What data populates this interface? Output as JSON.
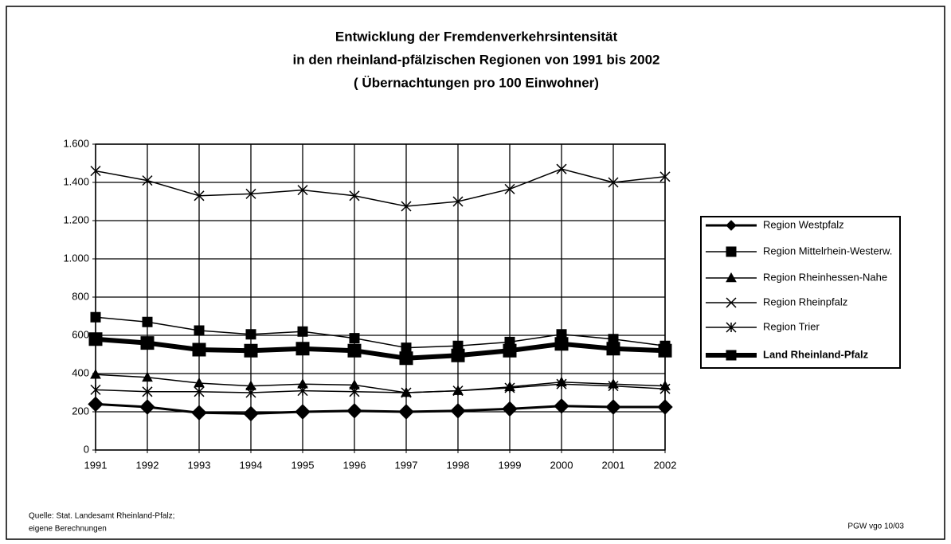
{
  "chart_data": {
    "type": "line",
    "title": [
      "Entwicklung der Fremdenverkehrsintensität",
      "in den rheinland-pfälzischen Regionen von 1991 bis 2002",
      "( Übernachtungen pro 100 Einwohner)"
    ],
    "categories": [
      "1991",
      "1992",
      "1993",
      "1994",
      "1995",
      "1996",
      "1997",
      "1998",
      "1999",
      "2000",
      "2001",
      "2002"
    ],
    "ylim": [
      0,
      1600
    ],
    "yticks": [
      0,
      200,
      400,
      600,
      800,
      {
        "value": 1000,
        "label": "1.000"
      },
      {
        "value": 1200,
        "label": "1.200"
      },
      {
        "value": 1400,
        "label": "1.400"
      },
      {
        "value": 1600,
        "label": "1.600"
      }
    ],
    "grid": true,
    "legend": "right",
    "series": [
      {
        "name": "Region Westpfalz",
        "color": "#000000",
        "marker": "diamond",
        "width": 3,
        "values": [
          240,
          225,
          195,
          190,
          200,
          205,
          200,
          205,
          215,
          230,
          225,
          225
        ]
      },
      {
        "name": "Region Mittelrhein-Westerw.",
        "color": "#000000",
        "marker": "square",
        "width": 1.5,
        "values": [
          695,
          670,
          625,
          605,
          620,
          585,
          535,
          545,
          565,
          605,
          580,
          545
        ]
      },
      {
        "name": "Region Rheinhessen-Nahe",
        "color": "#000000",
        "marker": "triangle",
        "width": 1.5,
        "values": [
          395,
          380,
          350,
          335,
          345,
          340,
          300,
          310,
          330,
          355,
          345,
          335
        ]
      },
      {
        "name": "Region Rheinpfalz",
        "color": "#000000",
        "marker": "x",
        "width": 1.5,
        "values": [
          1460,
          1410,
          1330,
          1340,
          1360,
          1330,
          1275,
          1300,
          1365,
          1470,
          1400,
          1430
        ]
      },
      {
        "name": "Region Trier",
        "color": "#000000",
        "marker": "star",
        "width": 1.5,
        "values": [
          315,
          305,
          305,
          300,
          310,
          305,
          300,
          310,
          325,
          345,
          335,
          320
        ]
      },
      {
        "name": "Land Rheinland-Pfalz",
        "color": "#000000",
        "marker": "square",
        "width": 6,
        "values": [
          580,
          560,
          525,
          520,
          530,
          520,
          480,
          495,
          520,
          555,
          530,
          520
        ]
      }
    ],
    "source": [
      "Quelle: Stat. Landesamt Rheinland-Pfalz;",
      "eigene Berechnungen"
    ],
    "footer": "PGW vgo 10/03"
  }
}
